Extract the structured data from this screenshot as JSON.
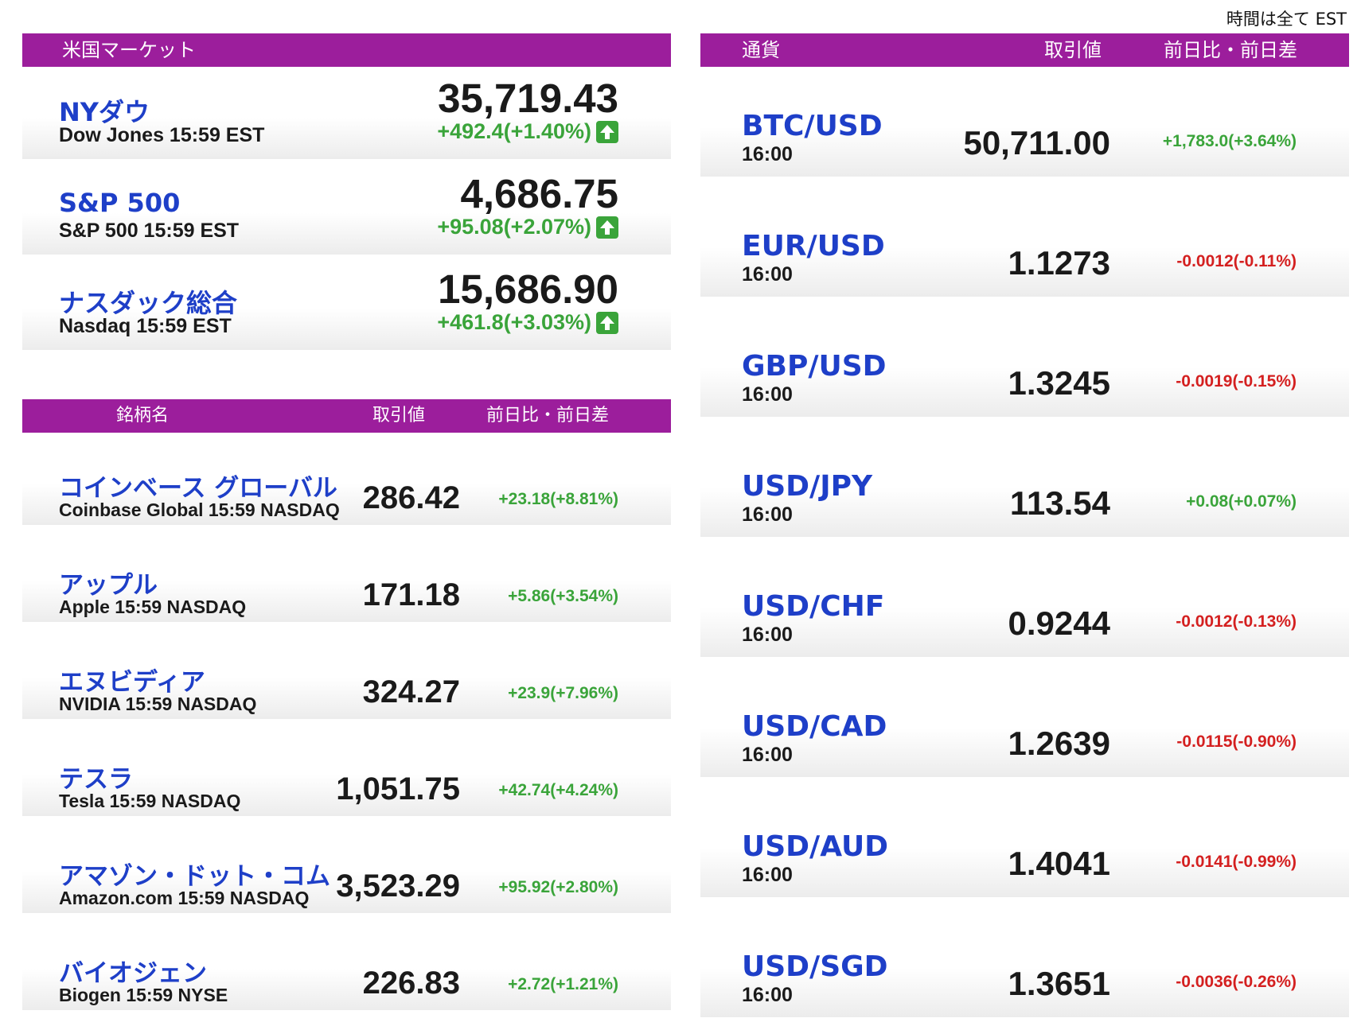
{
  "note": "時間は全て EST",
  "colors": {
    "header": "#9c1e9c",
    "name": "#1e3fc8",
    "positive": "#3aa43a",
    "negative": "#d42020"
  },
  "us_market": {
    "title": "米国マーケット",
    "indices": [
      {
        "name_jp": "NYダウ",
        "name_en": "Dow Jones 15:59 EST",
        "value": "35,719.43",
        "change": "+492.4(+1.40%)",
        "direction": "up",
        "arrow_icon": "arrow-up-icon"
      },
      {
        "name_jp": "S&P 500",
        "name_en": "S&P 500 15:59 EST",
        "value": "4,686.75",
        "change": "+95.08(+2.07%)",
        "direction": "up",
        "arrow_icon": "arrow-up-icon"
      },
      {
        "name_jp": "ナスダック総合",
        "name_en": "Nasdaq 15:59 EST",
        "value": "15,686.90",
        "change": "+461.8(+3.03%)",
        "direction": "up",
        "arrow_icon": "arrow-up-icon"
      }
    ]
  },
  "stocks": {
    "headers": {
      "name": "銘柄名",
      "price": "取引値",
      "change": "前日比・前日差"
    },
    "items": [
      {
        "name_jp": "コインベース グローバル",
        "name_en": "Coinbase Global 15:59  NASDAQ",
        "value": "286.42",
        "change": "+23.18(+8.81%)",
        "direction": "up"
      },
      {
        "name_jp": "アップル",
        "name_en": "Apple 15:59  NASDAQ",
        "value": "171.18",
        "change": "+5.86(+3.54%)",
        "direction": "up"
      },
      {
        "name_jp": "エヌビディア",
        "name_en": "NVIDIA 15:59  NASDAQ",
        "value": "324.27",
        "change": "+23.9(+7.96%)",
        "direction": "up"
      },
      {
        "name_jp": "テスラ",
        "name_en": "Tesla 15:59  NASDAQ",
        "value": "1,051.75",
        "change": "+42.74(+4.24%)",
        "direction": "up"
      },
      {
        "name_jp": "アマゾン・ドット・コム",
        "name_en": "Amazon.com 15:59  NASDAQ",
        "value": "3,523.29",
        "change": "+95.92(+2.80%)",
        "direction": "up"
      },
      {
        "name_jp": "バイオジェン",
        "name_en": "Biogen 15:59  NYSE",
        "value": "226.83",
        "change": "+2.72(+1.21%)",
        "direction": "up"
      }
    ]
  },
  "currency": {
    "headers": {
      "name": "通貨",
      "price": "取引値",
      "change": "前日比・前日差"
    },
    "items": [
      {
        "pair": "BTC/USD",
        "time": "16:00",
        "value": "50,711.00",
        "change": "+1,783.0(+3.64%)",
        "direction": "up"
      },
      {
        "pair": "EUR/USD",
        "time": "16:00",
        "value": "1.1273",
        "change": "-0.0012(-0.11%)",
        "direction": "down"
      },
      {
        "pair": "GBP/USD",
        "time": "16:00",
        "value": "1.3245",
        "change": "-0.0019(-0.15%)",
        "direction": "down"
      },
      {
        "pair": "USD/JPY",
        "time": "16:00",
        "value": "113.54",
        "change": "+0.08(+0.07%)",
        "direction": "up"
      },
      {
        "pair": "USD/CHF",
        "time": "16:00",
        "value": "0.9244",
        "change": "-0.0012(-0.13%)",
        "direction": "down"
      },
      {
        "pair": "USD/CAD",
        "time": "16:00",
        "value": "1.2639",
        "change": "-0.0115(-0.90%)",
        "direction": "down"
      },
      {
        "pair": "USD/AUD",
        "time": "16:00",
        "value": "1.4041",
        "change": "-0.0141(-0.99%)",
        "direction": "down"
      },
      {
        "pair": "USD/SGD",
        "time": "16:00",
        "value": "1.3651",
        "change": "-0.0036(-0.26%)",
        "direction": "down"
      }
    ]
  }
}
